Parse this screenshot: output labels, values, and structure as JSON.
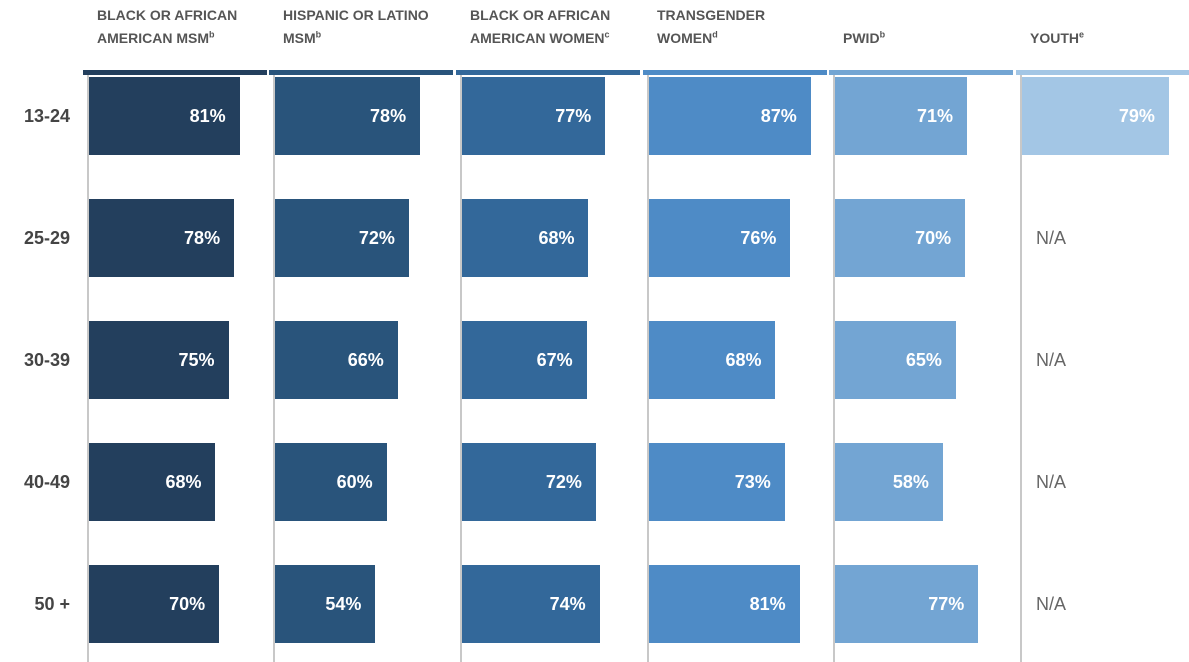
{
  "chart_data": {
    "type": "bar",
    "categories": [
      "13-24",
      "25-29",
      "30-39",
      "40-49",
      "50 +"
    ],
    "xlim": [
      0,
      100
    ],
    "series": [
      {
        "name": "BLACK OR AFRICAN AMERICAN MSM",
        "note": "b",
        "color": "#233f5d",
        "values": [
          81,
          78,
          75,
          68,
          70
        ],
        "value_labels": [
          "81%",
          "78%",
          "75%",
          "68%",
          "70%"
        ]
      },
      {
        "name": "HISPANIC OR LATINO MSM",
        "note": "b",
        "color": "#29547b",
        "values": [
          78,
          72,
          66,
          60,
          54
        ],
        "value_labels": [
          "78%",
          "72%",
          "66%",
          "60%",
          "54%"
        ]
      },
      {
        "name": "BLACK OR AFRICAN AMERICAN WOMEN",
        "note": "c",
        "color": "#33689a",
        "values": [
          77,
          68,
          67,
          72,
          74
        ],
        "value_labels": [
          "77%",
          "68%",
          "67%",
          "72%",
          "74%"
        ]
      },
      {
        "name": "TRANSGENDER WOMEN",
        "note": "d",
        "color": "#4e8bc6",
        "values": [
          87,
          76,
          68,
          73,
          81
        ],
        "value_labels": [
          "87%",
          "76%",
          "68%",
          "73%",
          "81%"
        ]
      },
      {
        "name": "PWID",
        "note": "b",
        "color": "#73a5d3",
        "values": [
          71,
          70,
          65,
          58,
          77
        ],
        "value_labels": [
          "71%",
          "70%",
          "65%",
          "58%",
          "77%"
        ]
      },
      {
        "name": "YOUTH",
        "note": "e",
        "color": "#a3c6e5",
        "values": [
          79,
          null,
          null,
          null,
          null
        ],
        "value_labels": [
          "79%",
          "N/A",
          "N/A",
          "N/A",
          "N/A"
        ]
      }
    ]
  }
}
